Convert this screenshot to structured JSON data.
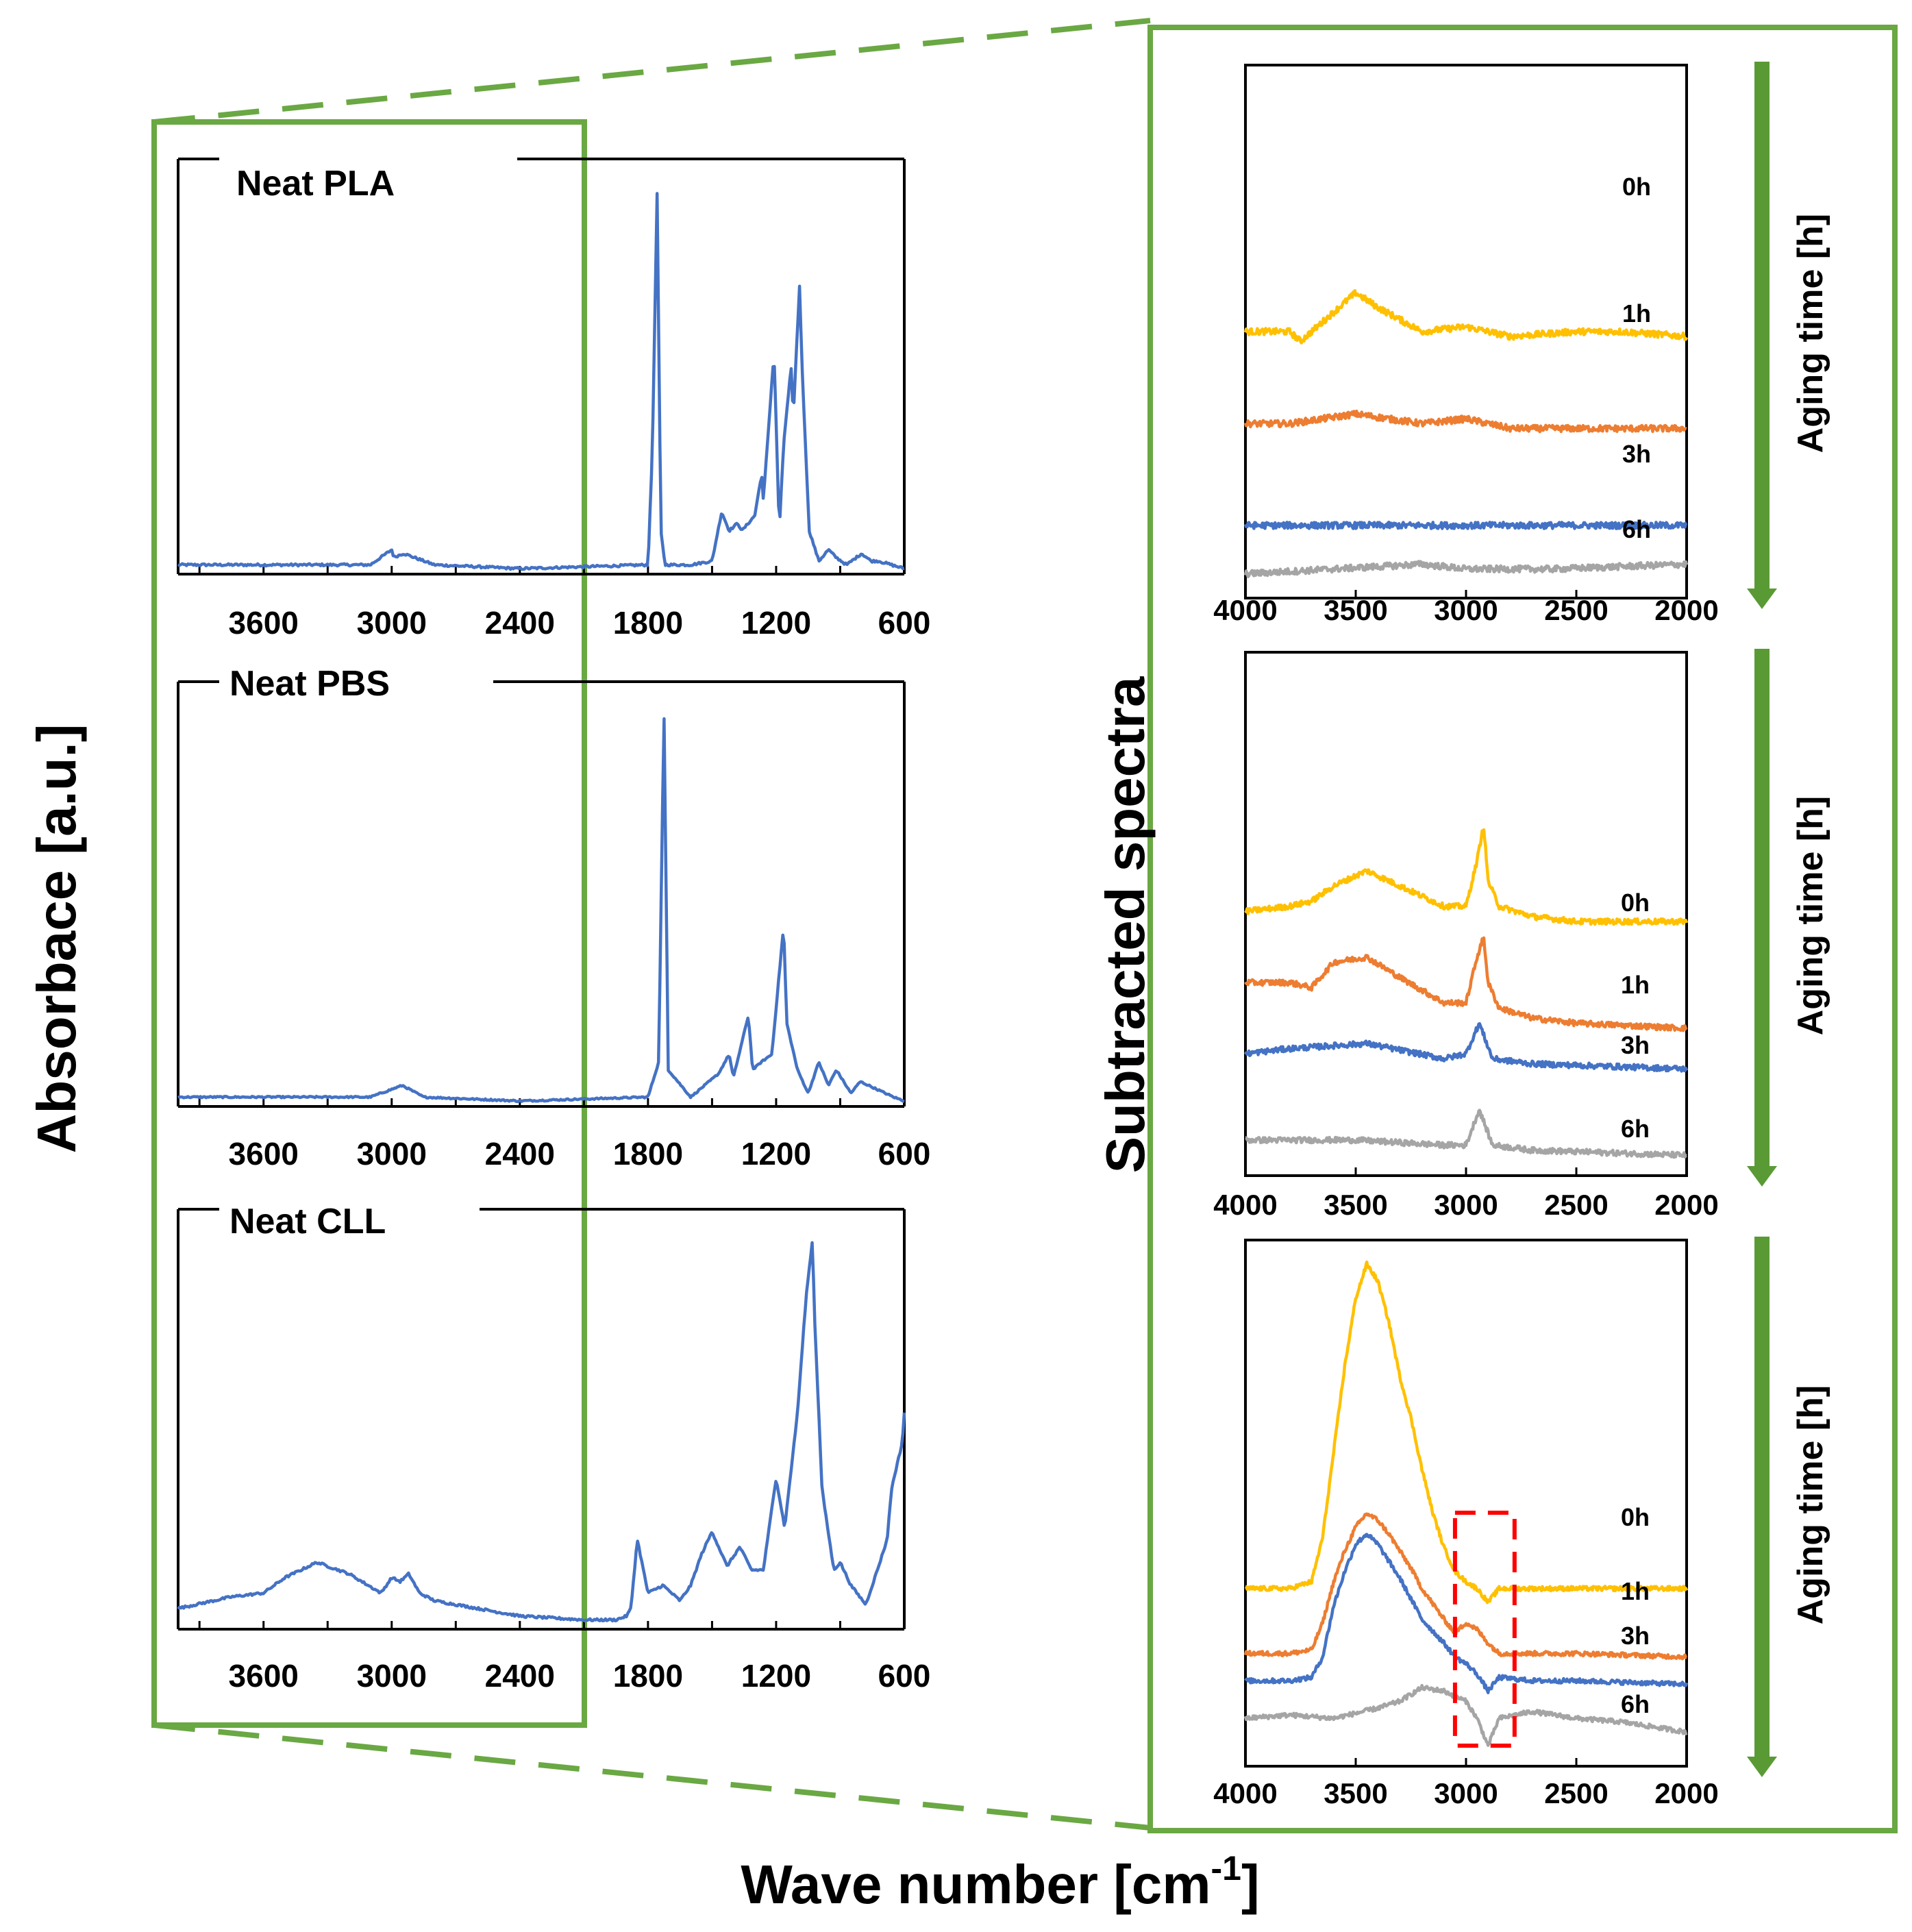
{
  "figure": {
    "y_axis_label": "Absorbace [a.u.]",
    "x_axis_label": "Wave number [cm",
    "x_axis_label_sup": "-1",
    "x_axis_label_close": "]",
    "right_axis_label": "Subtracted spectra",
    "colors": {
      "frame_green": "#6aa843",
      "arrow_green": "#5a9a35",
      "spectrum_blue": "#4472c4",
      "zoom_box_red": "#ff0000"
    }
  },
  "chart_data": [
    {
      "type": "line",
      "title": "Neat PLA",
      "xlim": [
        4000,
        600
      ],
      "xticks": [
        "3600",
        "3000",
        "2400",
        "1800",
        "1200",
        "600"
      ],
      "y_ticks_shown": false,
      "series": [
        {
          "x": [
            4000,
            3700,
            3100,
            3000,
            2990,
            2945,
            2800,
            2400,
            1800,
            1780,
            1757,
            1740,
            1720,
            1600,
            1500,
            1455,
            1420,
            1380,
            1360,
            1300,
            1268,
            1260,
            1210,
            1185,
            1165,
            1130,
            1120,
            1090,
            1080,
            1045,
            1000,
            955,
            920,
            870,
            800,
            755,
            720,
            600
          ],
          "y": [
            0.01,
            0.01,
            0.01,
            0.05,
            0.03,
            0.04,
            0.01,
            0.0,
            0.01,
            0.3,
            1.0,
            0.1,
            0.01,
            0.01,
            0.02,
            0.15,
            0.1,
            0.12,
            0.1,
            0.14,
            0.25,
            0.18,
            0.57,
            0.1,
            0.33,
            0.53,
            0.4,
            0.75,
            0.55,
            0.1,
            0.02,
            0.05,
            0.03,
            0.01,
            0.04,
            0.02,
            0.02,
            0.0
          ]
        }
      ]
    },
    {
      "type": "line",
      "title": "Neat PBS",
      "xlim": [
        4000,
        600
      ],
      "xticks": [
        "3600",
        "3000",
        "2400",
        "1800",
        "1200",
        "600"
      ],
      "y_ticks_shown": false,
      "series": [
        {
          "x": [
            4000,
            3600,
            3100,
            2950,
            2850,
            2400,
            1800,
            1750,
            1725,
            1705,
            1600,
            1470,
            1420,
            1400,
            1330,
            1310,
            1270,
            1220,
            1165,
            1150,
            1100,
            1050,
            1000,
            955,
            918,
            850,
            806,
            650,
            600
          ],
          "y": [
            0.01,
            0.01,
            0.01,
            0.04,
            0.01,
            0.0,
            0.01,
            0.1,
            1.0,
            0.08,
            0.01,
            0.07,
            0.12,
            0.06,
            0.22,
            0.08,
            0.1,
            0.12,
            0.45,
            0.2,
            0.08,
            0.02,
            0.1,
            0.04,
            0.08,
            0.02,
            0.05,
            0.01,
            0.0
          ]
        }
      ]
    },
    {
      "type": "line",
      "title": "Neat CLL",
      "xlim": [
        4000,
        600
      ],
      "xticks": [
        "3600",
        "3000",
        "2400",
        "1800",
        "1200",
        "600"
      ],
      "y_ticks_shown": false,
      "series": [
        {
          "x": [
            4000,
            3750,
            3600,
            3500,
            3350,
            3200,
            3050,
            3000,
            2960,
            2920,
            2870,
            2800,
            2600,
            2400,
            2100,
            1950,
            1900,
            1880,
            1850,
            1800,
            1730,
            1650,
            1600,
            1550,
            1500,
            1430,
            1370,
            1315,
            1260,
            1200,
            1160,
            1100,
            1060,
            1030,
            1020,
            985,
            930,
            900,
            850,
            780,
            720,
            680,
            660,
            640,
            610,
            600
          ],
          "y": [
            0.04,
            0.07,
            0.08,
            0.12,
            0.16,
            0.13,
            0.08,
            0.12,
            0.11,
            0.13,
            0.08,
            0.06,
            0.04,
            0.02,
            0.01,
            0.01,
            0.02,
            0.04,
            0.22,
            0.08,
            0.1,
            0.06,
            0.1,
            0.18,
            0.24,
            0.15,
            0.2,
            0.14,
            0.14,
            0.38,
            0.25,
            0.55,
            0.85,
            1.0,
            0.8,
            0.35,
            0.14,
            0.16,
            0.1,
            0.05,
            0.15,
            0.22,
            0.35,
            0.4,
            0.47,
            0.55
          ]
        }
      ]
    },
    {
      "type": "line",
      "title": "",
      "xlim": [
        4000,
        2000
      ],
      "xticks": [
        "4000",
        "3500",
        "3000",
        "2500",
        "2000"
      ],
      "y_ticks_shown": false,
      "legend": "labels at right end of curves",
      "series": [
        {
          "name": "0h",
          "color": "#ffc000",
          "x": [
            4000,
            3800,
            3750,
            3650,
            3500,
            3400,
            3200,
            3000,
            2800,
            2500,
            2300,
            2000
          ],
          "y": [
            0.5,
            0.5,
            0.48,
            0.52,
            0.58,
            0.55,
            0.5,
            0.51,
            0.49,
            0.5,
            0.5,
            0.49
          ]
        },
        {
          "name": "1h",
          "color": "#ed7d31",
          "x": [
            4000,
            3800,
            3500,
            3200,
            3000,
            2800,
            2500,
            2000
          ],
          "y": [
            0.31,
            0.31,
            0.33,
            0.31,
            0.32,
            0.3,
            0.3,
            0.3
          ]
        },
        {
          "name": "3h",
          "color": "#4472c4",
          "x": [
            4000,
            3600,
            3200,
            3000,
            2600,
            2000
          ],
          "y": [
            0.1,
            0.1,
            0.1,
            0.1,
            0.1,
            0.1
          ]
        },
        {
          "name": "6h",
          "color": "#a5a5a5",
          "x": [
            4000,
            3600,
            3200,
            3000,
            2600,
            2000
          ],
          "y": [
            0.0,
            0.01,
            0.02,
            0.01,
            0.01,
            0.02
          ]
        }
      ],
      "side_annotation": "Aging time [h]"
    },
    {
      "type": "line",
      "title": "",
      "xlim": [
        4000,
        2000
      ],
      "xticks": [
        "4000",
        "3500",
        "3000",
        "2500",
        "2000"
      ],
      "y_ticks_shown": false,
      "legend": "labels at right end of curves",
      "series": [
        {
          "name": "0h",
          "color": "#ffc000",
          "x": [
            4000,
            3800,
            3700,
            3600,
            3450,
            3300,
            3100,
            3000,
            2950,
            2920,
            2900,
            2850,
            2700,
            2500,
            2000
          ],
          "y": [
            0.49,
            0.5,
            0.51,
            0.54,
            0.57,
            0.54,
            0.5,
            0.5,
            0.59,
            0.66,
            0.55,
            0.5,
            0.48,
            0.47,
            0.47
          ]
        },
        {
          "name": "1h",
          "color": "#ed7d31",
          "x": [
            4000,
            3800,
            3700,
            3600,
            3450,
            3300,
            3100,
            3000,
            2950,
            2920,
            2900,
            2850,
            2700,
            2500,
            2000
          ],
          "y": [
            0.35,
            0.35,
            0.34,
            0.39,
            0.4,
            0.36,
            0.31,
            0.31,
            0.4,
            0.44,
            0.35,
            0.3,
            0.28,
            0.27,
            0.26
          ]
        },
        {
          "name": "3h",
          "color": "#4472c4",
          "x": [
            4000,
            3800,
            3450,
            3100,
            3000,
            2940,
            2880,
            2700,
            2000
          ],
          "y": [
            0.21,
            0.22,
            0.23,
            0.2,
            0.21,
            0.27,
            0.2,
            0.19,
            0.18
          ]
        },
        {
          "name": "6h",
          "color": "#a5a5a5",
          "x": [
            4000,
            3800,
            3500,
            3100,
            3000,
            2940,
            2880,
            2700,
            2000
          ],
          "y": [
            0.04,
            0.04,
            0.04,
            0.03,
            0.03,
            0.1,
            0.03,
            0.02,
            0.01
          ]
        }
      ],
      "side_annotation": "Aging time [h]"
    },
    {
      "type": "line",
      "title": "",
      "xlim": [
        4000,
        2000
      ],
      "xticks": [
        "4000",
        "3500",
        "3000",
        "2500",
        "2000"
      ],
      "y_ticks_shown": false,
      "legend": "labels at right end of curves",
      "highlight_region_x": [
        3050,
        2780
      ],
      "series": [
        {
          "name": "0h",
          "color": "#ffc000",
          "x": [
            4000,
            3800,
            3700,
            3650,
            3600,
            3550,
            3500,
            3450,
            3400,
            3350,
            3300,
            3250,
            3200,
            3150,
            3100,
            3050,
            3000,
            2950,
            2900,
            2850,
            2700,
            2500,
            2000
          ],
          "y": [
            0.4,
            0.4,
            0.42,
            0.55,
            0.8,
            1.05,
            1.25,
            1.35,
            1.3,
            1.18,
            1.02,
            0.9,
            0.75,
            0.62,
            0.52,
            0.45,
            0.42,
            0.4,
            0.36,
            0.4,
            0.4,
            0.4,
            0.4
          ]
        },
        {
          "name": "1h",
          "color": "#ed7d31",
          "x": [
            4000,
            3800,
            3700,
            3650,
            3600,
            3550,
            3500,
            3450,
            3400,
            3350,
            3300,
            3250,
            3200,
            3100,
            3050,
            3000,
            2950,
            2900,
            2850,
            2700,
            2500,
            2000
          ],
          "y": [
            0.21,
            0.21,
            0.22,
            0.3,
            0.42,
            0.51,
            0.58,
            0.62,
            0.6,
            0.56,
            0.51,
            0.46,
            0.4,
            0.31,
            0.27,
            0.3,
            0.28,
            0.24,
            0.21,
            0.21,
            0.21,
            0.2
          ]
        },
        {
          "name": "3h",
          "color": "#4472c4",
          "x": [
            4000,
            3800,
            3700,
            3650,
            3600,
            3550,
            3500,
            3450,
            3400,
            3350,
            3300,
            3250,
            3200,
            3100,
            3050,
            3000,
            2950,
            2900,
            2850,
            2700,
            2500,
            2000
          ],
          "y": [
            0.13,
            0.13,
            0.14,
            0.2,
            0.35,
            0.45,
            0.53,
            0.56,
            0.53,
            0.48,
            0.43,
            0.37,
            0.31,
            0.24,
            0.2,
            0.18,
            0.15,
            0.1,
            0.14,
            0.13,
            0.13,
            0.12
          ]
        },
        {
          "name": "6h",
          "color": "#a5a5a5",
          "x": [
            4000,
            3800,
            3600,
            3400,
            3300,
            3200,
            3100,
            3000,
            2950,
            2900,
            2850,
            2700,
            2500,
            2300,
            2000
          ],
          "y": [
            0.02,
            0.03,
            0.02,
            0.05,
            0.07,
            0.11,
            0.1,
            0.07,
            0.02,
            -0.06,
            0.02,
            0.04,
            0.02,
            0.01,
            -0.02
          ]
        }
      ],
      "side_annotation": "Aging time [h]"
    }
  ]
}
